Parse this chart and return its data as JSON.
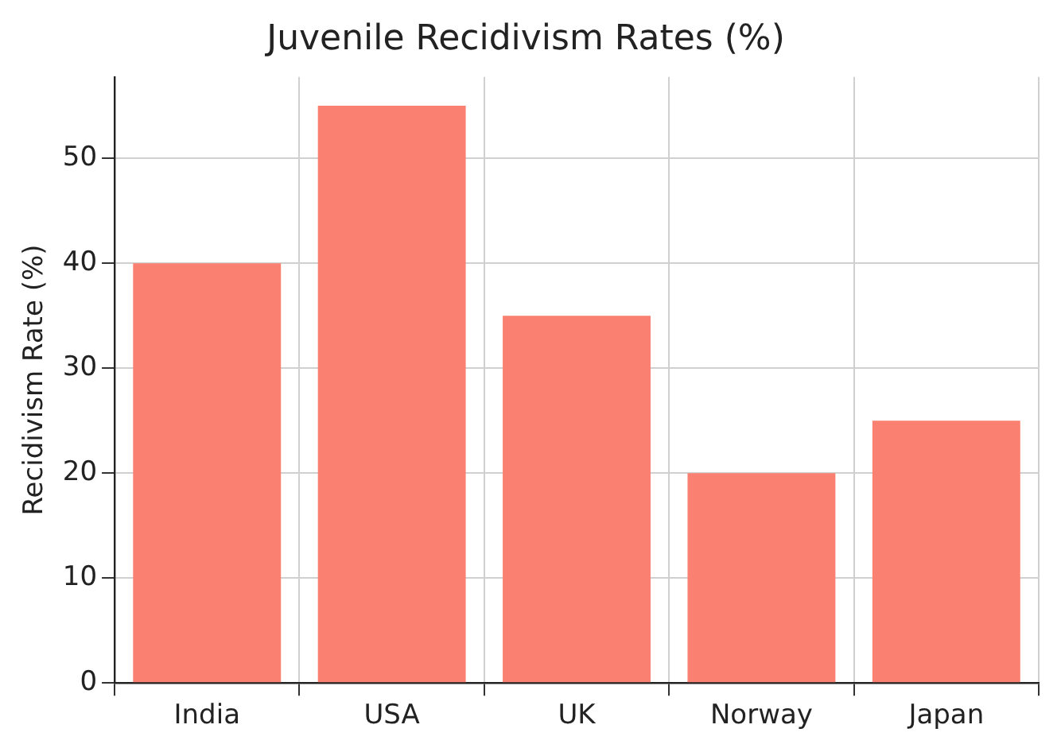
{
  "chart_data": {
    "type": "bar",
    "title": "Juvenile Recidivism Rates (%)",
    "ylabel": "Recidivism Rate (%)",
    "categories": [
      "India",
      "USA",
      "UK",
      "Norway",
      "Japan"
    ],
    "values": [
      40,
      55,
      35,
      20,
      25
    ],
    "color": "#fa8072",
    "ylim": [
      0,
      57.75
    ],
    "yticks": [
      0,
      10,
      20,
      30,
      40,
      50
    ],
    "grid": true,
    "legend": false
  }
}
